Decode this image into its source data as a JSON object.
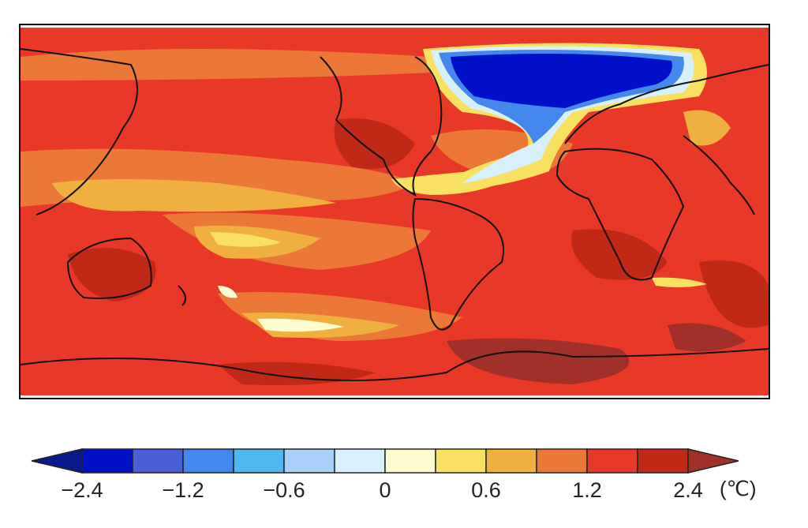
{
  "figure": {
    "title": "",
    "colorbar": {
      "unit": "(℃)",
      "tick_labels": [
        "−2.4",
        "−1.2",
        "−0.6",
        "0",
        "0.6",
        "1.2",
        "2.4"
      ],
      "tick_positions_levels": [
        0,
        2,
        4,
        6,
        8,
        10,
        12
      ],
      "levels": [
        -2.4,
        -1.8,
        -1.2,
        -0.9,
        -0.6,
        -0.3,
        0,
        0.3,
        0.6,
        0.9,
        1.2,
        1.8,
        2.4
      ],
      "colors": [
        "#0010c8",
        "#4a60d8",
        "#4488ee",
        "#50b8f0",
        "#a8d0f8",
        "#d8f0fc",
        "#fcfcd0",
        "#f8e060",
        "#f0b040",
        "#ec7838",
        "#e83828",
        "#c02818"
      ],
      "under_color": "#0a1a8c",
      "over_color": "#a03028"
    }
  }
}
